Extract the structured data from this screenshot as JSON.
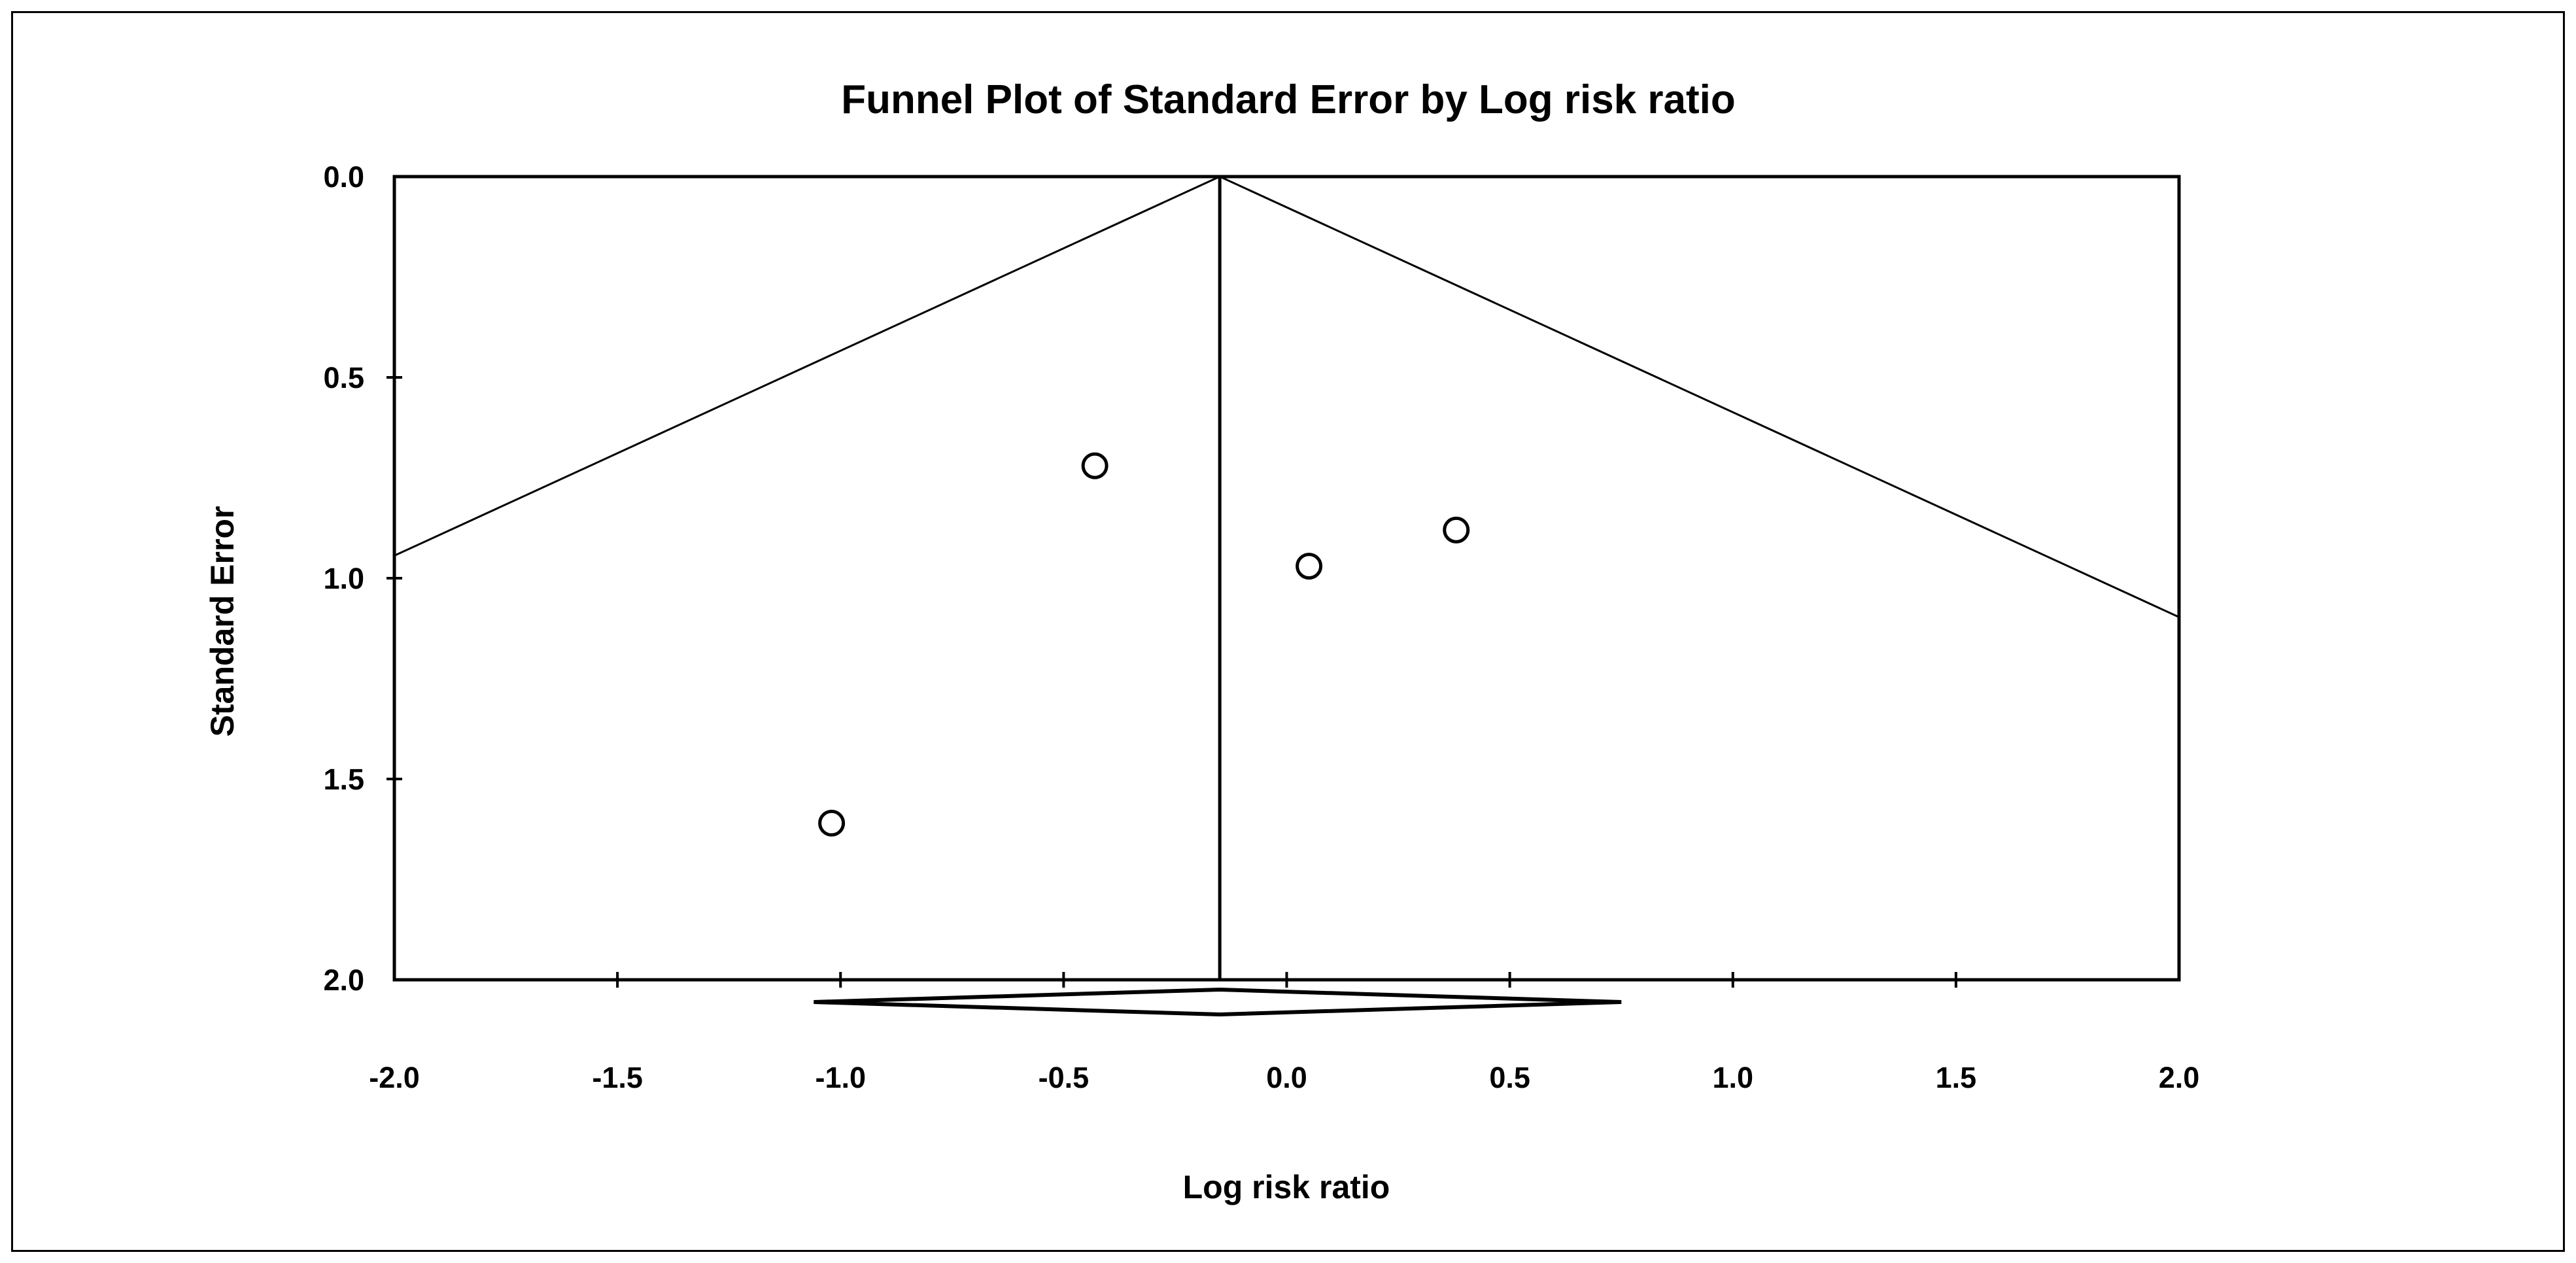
{
  "figure": {
    "background_color": "#ffffff",
    "frame_color": "#000000",
    "ink_color": "#000000"
  },
  "chart_data": {
    "type": "scatter",
    "subtype": "funnel-plot",
    "title": "Funnel Plot of Standard Error by Log risk ratio",
    "xlabel": "Log risk ratio",
    "ylabel": "Standard Error",
    "xlim": [
      -2.0,
      2.0
    ],
    "ylim": [
      0.0,
      2.0
    ],
    "y_inverted": true,
    "grid": false,
    "legend": false,
    "x_ticks": [
      -2.0,
      -1.5,
      -1.0,
      -0.5,
      0.0,
      0.5,
      1.0,
      1.5,
      2.0
    ],
    "y_ticks": [
      0.0,
      0.5,
      1.0,
      1.5,
      2.0
    ],
    "marker": {
      "shape": "open-circle",
      "stroke": "#000000",
      "fill": "#ffffff"
    },
    "points": [
      {
        "log_risk_ratio": -0.43,
        "standard_error": 0.72
      },
      {
        "log_risk_ratio": 0.05,
        "standard_error": 0.97
      },
      {
        "log_risk_ratio": 0.38,
        "standard_error": 0.88
      },
      {
        "log_risk_ratio": -1.02,
        "standard_error": 1.61
      }
    ],
    "funnel": {
      "center": -0.15,
      "z": 1.96
    },
    "summary_diamond": {
      "estimate": -0.15,
      "ci_lower": -1.06,
      "ci_upper": 0.75
    }
  }
}
